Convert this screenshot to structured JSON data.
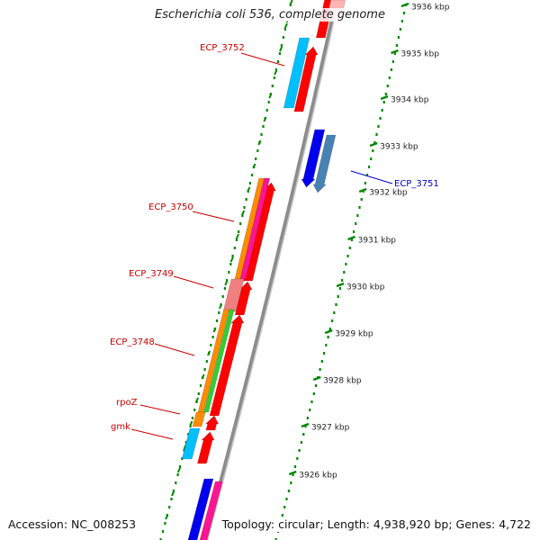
{
  "title": "Escherichia coli 536, complete genome",
  "accession": "Accession: NC_008253",
  "topology": "Topology: circular; Length: 4,938,920 bp; Genes: 4,722",
  "ticks": [
    "3926 kbp",
    "3927 kbp",
    "3928 kbp",
    "3929 kbp",
    "3930 kbp",
    "3931 kbp",
    "3932 kbp",
    "3933 kbp",
    "3934 kbp",
    "3935 kbp",
    "3936 kbp"
  ],
  "gene_labels": [
    {
      "text": "ECP_3752",
      "color": "#cc0000"
    },
    {
      "text": "ECP_3751",
      "color": "#0000cc"
    },
    {
      "text": "ECP_3750",
      "color": "#cc0000"
    },
    {
      "text": "ECP_3749",
      "color": "#cc0000"
    },
    {
      "text": "ECP_3748",
      "color": "#cc0000"
    },
    {
      "text": "rpoZ",
      "color": "#cc0000"
    },
    {
      "text": "gmk",
      "color": "#cc0000"
    }
  ],
  "colors": {
    "forward_cds": "#ff0000",
    "reverse_cds": "#0000ee",
    "reverse_cds_alt": "#4682b4",
    "feature_cyan": "#00bfff",
    "feature_orange": "#ff8c00",
    "feature_magenta": "#ff1493",
    "feature_pink": "#f08080",
    "feature_green": "#32cd32",
    "backbone": "#8c8c8c",
    "tick": "#008800"
  }
}
